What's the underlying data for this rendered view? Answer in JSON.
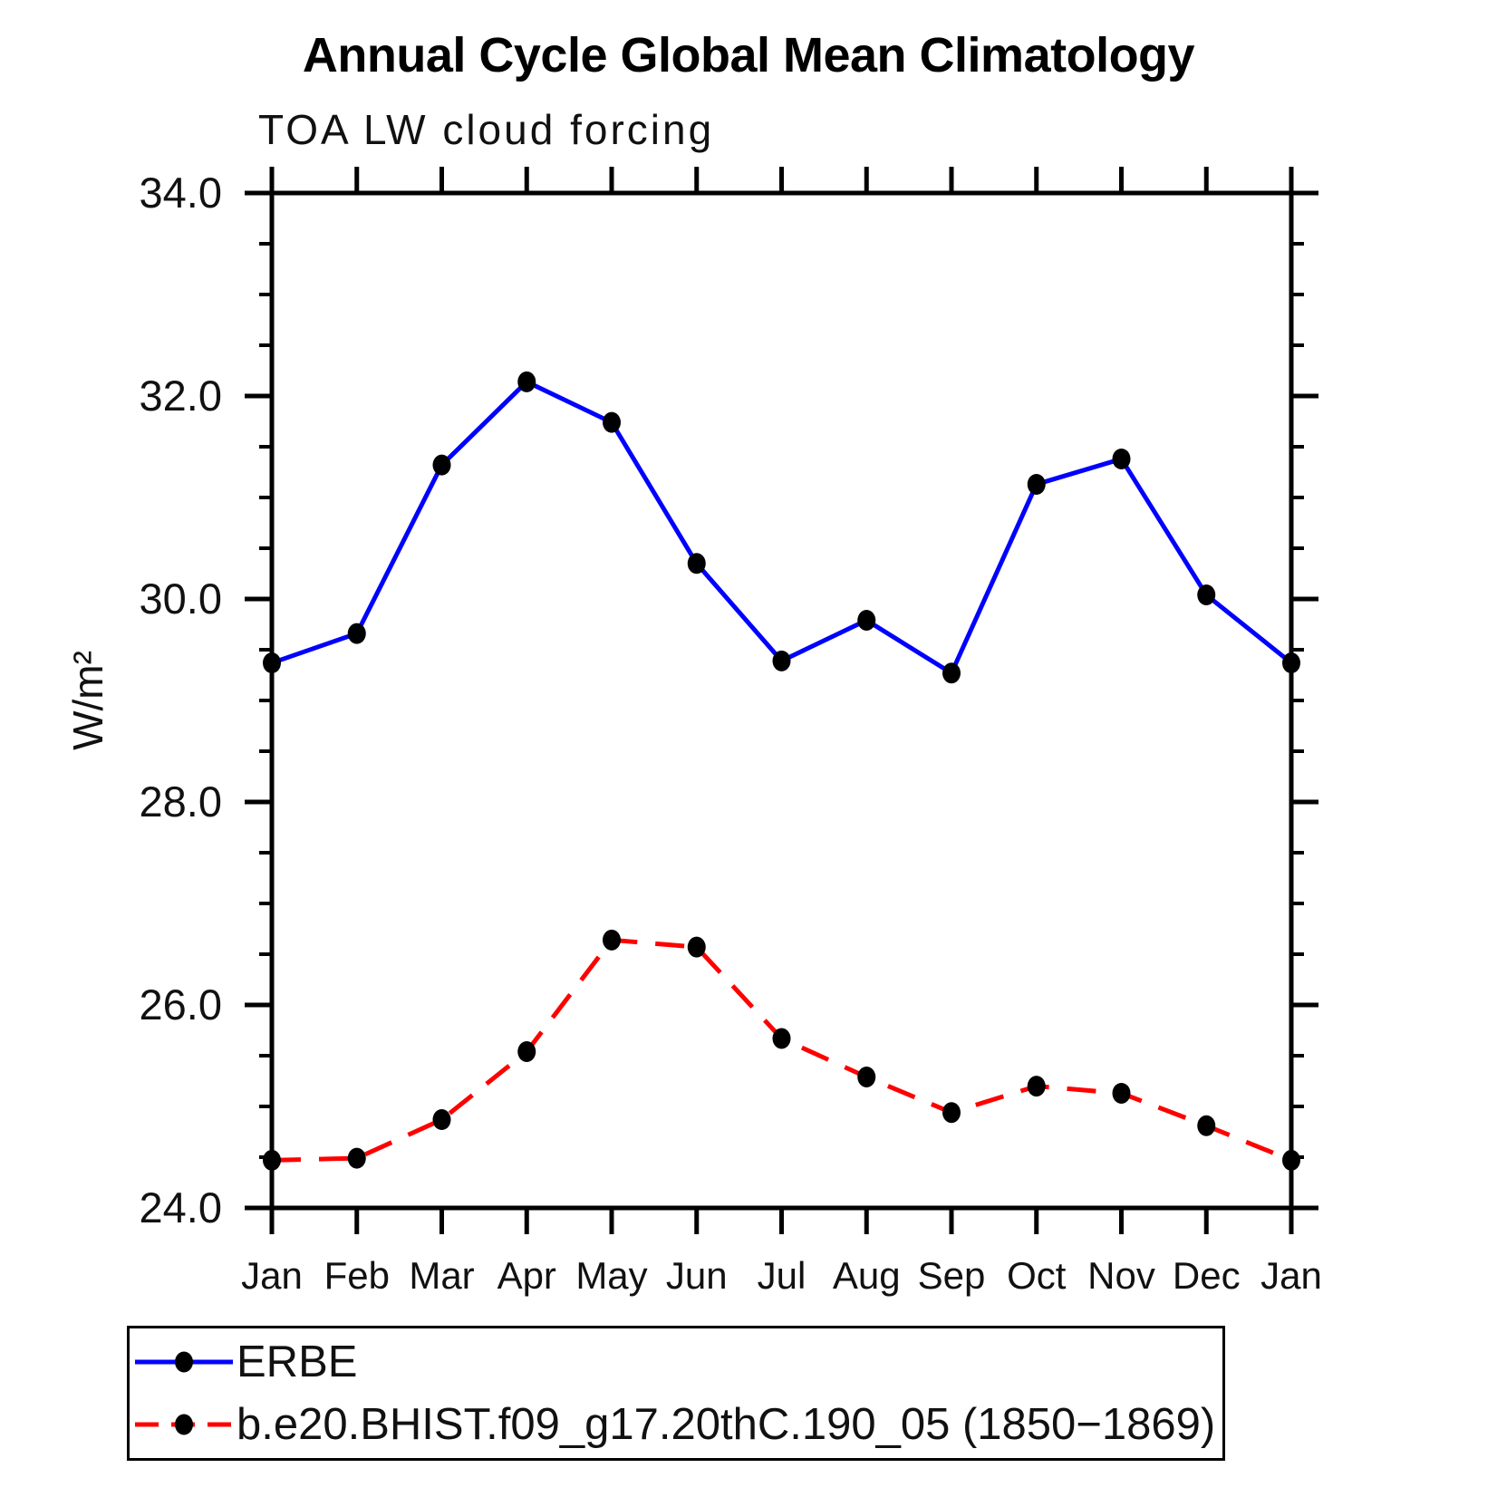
{
  "title": "Annual Cycle Global Mean Climatology",
  "subtitle": "TOA LW cloud forcing",
  "y_axis": {
    "label": "W/m²",
    "tick_labels": [
      "34.0",
      "32.0",
      "30.0",
      "28.0",
      "26.0",
      "24.0"
    ],
    "min": 24.0,
    "max": 34.0,
    "major_step": 2.0,
    "minor_step": 0.5
  },
  "x_axis": {
    "tick_labels": [
      "Jan",
      "Feb",
      "Mar",
      "Apr",
      "May",
      "Jun",
      "Jul",
      "Aug",
      "Sep",
      "Oct",
      "Nov",
      "Dec",
      "Jan"
    ]
  },
  "legend": {
    "entries": [
      {
        "label": "ERBE",
        "color": "#0000ff",
        "style": "solid"
      },
      {
        "label": "b.e20.BHIST.f09_g17.20thC.190_05 (1850−1869)",
        "color": "#ff0000",
        "style": "dashed"
      }
    ]
  },
  "colors": {
    "erbe_line": "#0000ff",
    "model_line": "#ff0000",
    "marker": "#000000",
    "axis": "#000000"
  },
  "chart_data": {
    "type": "line",
    "title": "Annual Cycle Global Mean Climatology",
    "subtitle": "TOA LW cloud forcing",
    "xlabel": "",
    "ylabel": "W/m²",
    "ylim": [
      24.0,
      34.0
    ],
    "grid": false,
    "legend_position": "below",
    "categories": [
      "Jan",
      "Feb",
      "Mar",
      "Apr",
      "May",
      "Jun",
      "Jul",
      "Aug",
      "Sep",
      "Oct",
      "Nov",
      "Dec",
      "Jan"
    ],
    "series": [
      {
        "name": "ERBE",
        "color": "#0000ff",
        "line_style": "solid",
        "marker": "filled-circle",
        "values": [
          29.37,
          29.66,
          31.32,
          32.14,
          31.74,
          30.35,
          29.39,
          29.79,
          29.27,
          31.13,
          31.38,
          30.04,
          29.37
        ]
      },
      {
        "name": "b.e20.BHIST.f09_g17.20thC.190_05 (1850−1869)",
        "color": "#ff0000",
        "line_style": "dashed",
        "marker": "filled-circle",
        "values": [
          24.47,
          24.49,
          24.87,
          25.54,
          26.64,
          26.57,
          25.67,
          25.29,
          24.94,
          25.2,
          25.13,
          24.81,
          24.47
        ]
      }
    ]
  }
}
